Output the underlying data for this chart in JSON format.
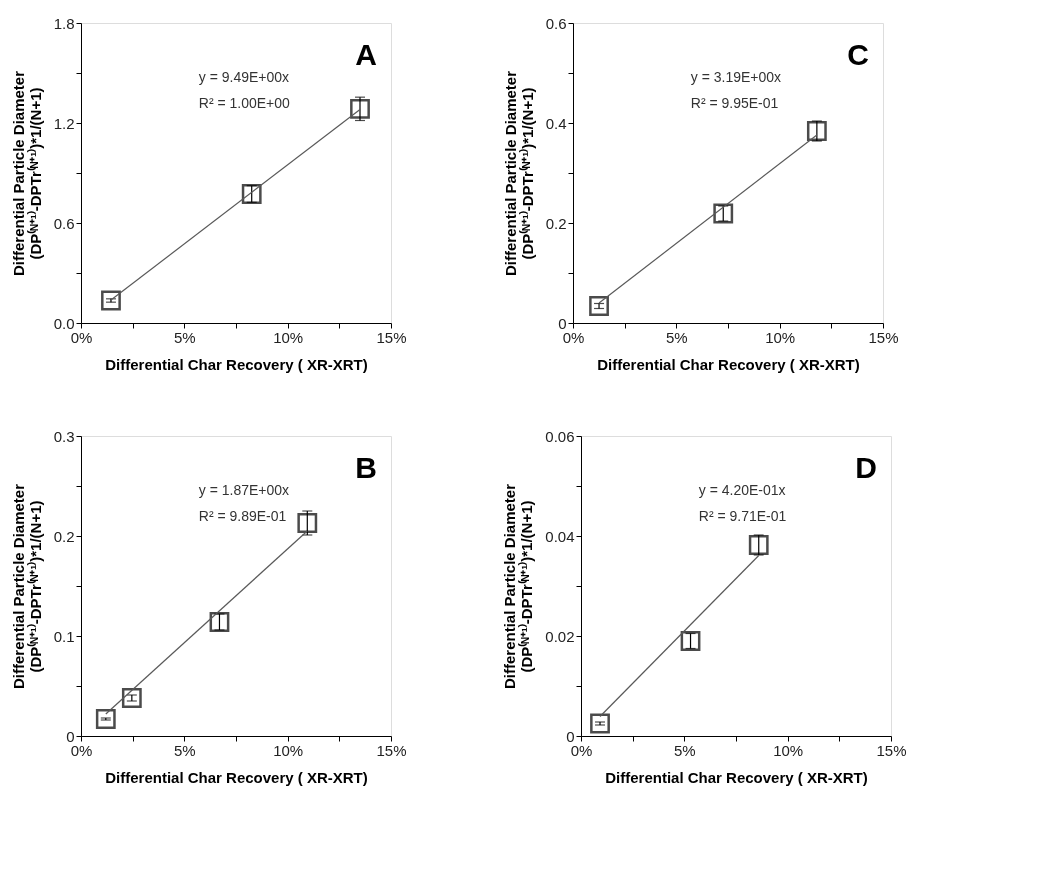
{
  "chart_data": [
    {
      "type": "scatter",
      "xlabel": "Differential Char Recovery ( XR-XRT)",
      "ylabel": "Differential Particle Diameter\n(DP⁽ᴺ⁺¹⁾-DPTr⁽ᴺ⁺¹⁾)*1/(N+1)",
      "grid": false,
      "xlim": [
        0,
        15
      ],
      "xticks": [
        {
          "value": 0,
          "label": "0%"
        },
        {
          "value": 2.5,
          "label": null
        },
        {
          "value": 5,
          "label": "5%"
        },
        {
          "value": 7.5,
          "label": null
        },
        {
          "value": 10,
          "label": "10%"
        },
        {
          "value": 12.5,
          "label": null
        },
        {
          "value": 15,
          "label": "15%"
        }
      ],
      "ylim": [
        0,
        1.8
      ],
      "yticks": [
        {
          "value": 0,
          "label": "0.0"
        },
        {
          "value": 0.3,
          "label": null
        },
        0.6,
        {
          "value": 0.9,
          "label": null
        },
        1.2,
        {
          "value": 1.5,
          "label": null
        },
        1.8
      ],
      "annotations": [
        "A",
        "y = 9.49E+00x",
        "R² = 1.00E+00"
      ],
      "series": [
        {
          "type": "scatter",
          "marker": "square",
          "color": "#000000",
          "x": [
            1.45,
            8.26,
            13.5
          ],
          "values": [
            0.135,
            0.774,
            1.285
          ],
          "errors": [
            0.01,
            0.05,
            0.07
          ]
        },
        {
          "type": "line",
          "color": "#595959",
          "x": [
            1.45,
            13.5
          ],
          "values": [
            0.138,
            1.281
          ]
        }
      ]
    },
    {
      "type": "scatter",
      "xlabel": "Differential Char Recovery ( XR-XRT)",
      "ylabel": "Differential Particle Diameter\n(DP⁽ᴺ⁺¹⁾-DPTr⁽ᴺ⁺¹⁾)*1/(N+1)",
      "grid": false,
      "xlim": [
        0,
        15
      ],
      "xticks": [
        {
          "value": 0,
          "label": "0%"
        },
        {
          "value": 2.5,
          "label": null
        },
        {
          "value": 5,
          "label": "5%"
        },
        {
          "value": 7.5,
          "label": null
        },
        {
          "value": 10,
          "label": "10%"
        },
        {
          "value": 12.5,
          "label": null
        },
        {
          "value": 15,
          "label": "15%"
        }
      ],
      "ylim": [
        0,
        0.6
      ],
      "yticks": [
        0,
        {
          "value": 0.1,
          "label": null
        },
        0.2,
        {
          "value": 0.3,
          "label": null
        },
        0.4,
        {
          "value": 0.5,
          "label": null
        },
        0.6
      ],
      "annotations": [
        "C",
        "y = 3.19E+00x",
        "R² = 9.95E-01"
      ],
      "series": [
        {
          "type": "scatter",
          "marker": "square",
          "color": "#000000",
          "x": [
            1.26,
            7.27,
            11.8
          ],
          "values": [
            0.034,
            0.219,
            0.384
          ],
          "errors": [
            0.005,
            0.015,
            0.02
          ]
        },
        {
          "type": "line",
          "color": "#595959",
          "x": [
            1.26,
            11.8
          ],
          "values": [
            0.04,
            0.376
          ]
        }
      ]
    },
    {
      "type": "scatter",
      "xlabel": "Differential Char Recovery ( XR-XRT)",
      "ylabel": "Differential Particle Diameter\n(DP⁽ᴺ⁺¹⁾-DPTr⁽ᴺ⁺¹⁾)*1/(N+1)",
      "grid": false,
      "xlim": [
        0,
        15
      ],
      "xticks": [
        {
          "value": 0,
          "label": "0%"
        },
        {
          "value": 2.5,
          "label": null
        },
        {
          "value": 5,
          "label": "5%"
        },
        {
          "value": 7.5,
          "label": null
        },
        {
          "value": 10,
          "label": "10%"
        },
        {
          "value": 12.5,
          "label": null
        },
        {
          "value": 15,
          "label": "15%"
        }
      ],
      "ylim": [
        0,
        0.3
      ],
      "yticks": [
        0,
        {
          "value": 0.05,
          "label": null
        },
        0.1,
        {
          "value": 0.15,
          "label": null
        },
        0.2,
        {
          "value": 0.25,
          "label": null
        },
        0.3
      ],
      "annotations": [
        "B",
        "y = 1.87E+00x",
        "R² = 9.89E-01"
      ],
      "series": [
        {
          "type": "scatter",
          "marker": "square",
          "color": "#000000",
          "x": [
            1.2,
            2.46,
            6.7,
            10.95
          ],
          "values": [
            0.017,
            0.038,
            0.114,
            0.213
          ],
          "errors": [
            0.001,
            0.003,
            0.008,
            0.012
          ]
        },
        {
          "type": "line",
          "color": "#595959",
          "x": [
            1.2,
            10.95
          ],
          "values": [
            0.022,
            0.205
          ]
        }
      ]
    },
    {
      "type": "scatter",
      "xlabel": "Differential Char Recovery ( XR-XRT)",
      "ylabel": "Differential Particle Diameter\n(DP⁽ᴺ⁺¹⁾-DPTr⁽ᴺ⁺¹⁾)*1/(N+1)",
      "grid": false,
      "xlim": [
        0,
        15
      ],
      "xticks": [
        {
          "value": 0,
          "label": "0%"
        },
        {
          "value": 2.5,
          "label": null
        },
        {
          "value": 5,
          "label": "5%"
        },
        {
          "value": 7.5,
          "label": null
        },
        {
          "value": 10,
          "label": "10%"
        },
        {
          "value": 12.5,
          "label": null
        },
        {
          "value": 15,
          "label": "15%"
        }
      ],
      "ylim": [
        0,
        0.06
      ],
      "yticks": [
        0,
        {
          "value": 0.01,
          "label": null
        },
        0.02,
        {
          "value": 0.03,
          "label": null
        },
        0.04,
        {
          "value": 0.05,
          "label": null
        },
        0.06
      ],
      "annotations": [
        "D",
        "y = 4.20E-01x",
        "R² = 9.71E-01"
      ],
      "series": [
        {
          "type": "scatter",
          "marker": "square",
          "color": "#000000",
          "x": [
            0.92,
            5.3,
            8.6
          ],
          "values": [
            0.0025,
            0.019,
            0.0382
          ],
          "errors": [
            0.0003,
            0.0015,
            0.002
          ]
        },
        {
          "type": "line",
          "color": "#595959",
          "x": [
            0.92,
            8.6
          ],
          "values": [
            0.0039,
            0.0361
          ]
        }
      ]
    }
  ]
}
